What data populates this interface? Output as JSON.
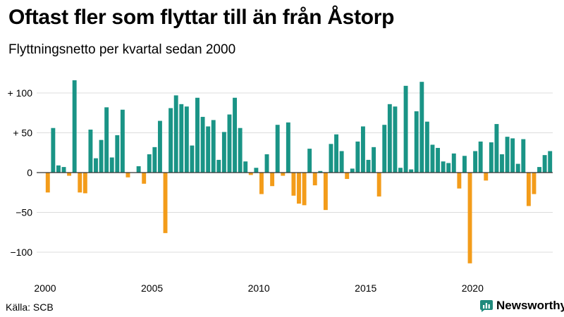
{
  "title": "Oftast fler som flyttar till än från Åstorp",
  "subtitle": "Flyttningsnetto per kvartal sedan 2000",
  "source": "Källa: SCB",
  "brand": "Newsworthy",
  "colors": {
    "positive": "#1a9486",
    "negative": "#f39c1a",
    "grid": "#dcdcdc",
    "zero": "#333333",
    "brand": "#1f8a7c"
  },
  "chart_data": {
    "type": "bar",
    "title": "",
    "xlabel": "",
    "ylabel": "",
    "ylim": [
      -120,
      120
    ],
    "grid": true,
    "yticks": [
      {
        "value": 100,
        "label": "+ 100"
      },
      {
        "value": 50,
        "label": "+ 50"
      },
      {
        "value": 0,
        "label": "0"
      },
      {
        "value": -50,
        "label": "−50"
      },
      {
        "value": -100,
        "label": "−100"
      }
    ],
    "xticks": [
      {
        "value": 2000,
        "label": "2000"
      },
      {
        "value": 2005,
        "label": "2005"
      },
      {
        "value": 2010,
        "label": "2010"
      },
      {
        "value": 2015,
        "label": "2015"
      },
      {
        "value": 2020,
        "label": "2020"
      }
    ],
    "start_period": "2000 Q1",
    "values": [
      -25,
      56,
      9,
      7,
      -4,
      116,
      -25,
      -26,
      54,
      18,
      41,
      82,
      19,
      47,
      79,
      -6,
      0,
      8,
      -14,
      23,
      32,
      65,
      -76,
      81,
      97,
      86,
      83,
      34,
      94,
      70,
      58,
      66,
      16,
      51,
      73,
      94,
      56,
      14,
      -3,
      6,
      -27,
      23,
      -17,
      60,
      -4,
      63,
      -29,
      -39,
      -41,
      30,
      -16,
      2,
      -47,
      36,
      48,
      27,
      -8,
      5,
      39,
      58,
      16,
      32,
      -30,
      60,
      86,
      83,
      6,
      109,
      4,
      77,
      114,
      64,
      35,
      31,
      14,
      12,
      24,
      -20,
      21,
      -114,
      27,
      39,
      -10,
      38,
      61,
      23,
      45,
      43,
      11,
      42,
      -42,
      -27,
      7,
      22,
      27
    ]
  }
}
